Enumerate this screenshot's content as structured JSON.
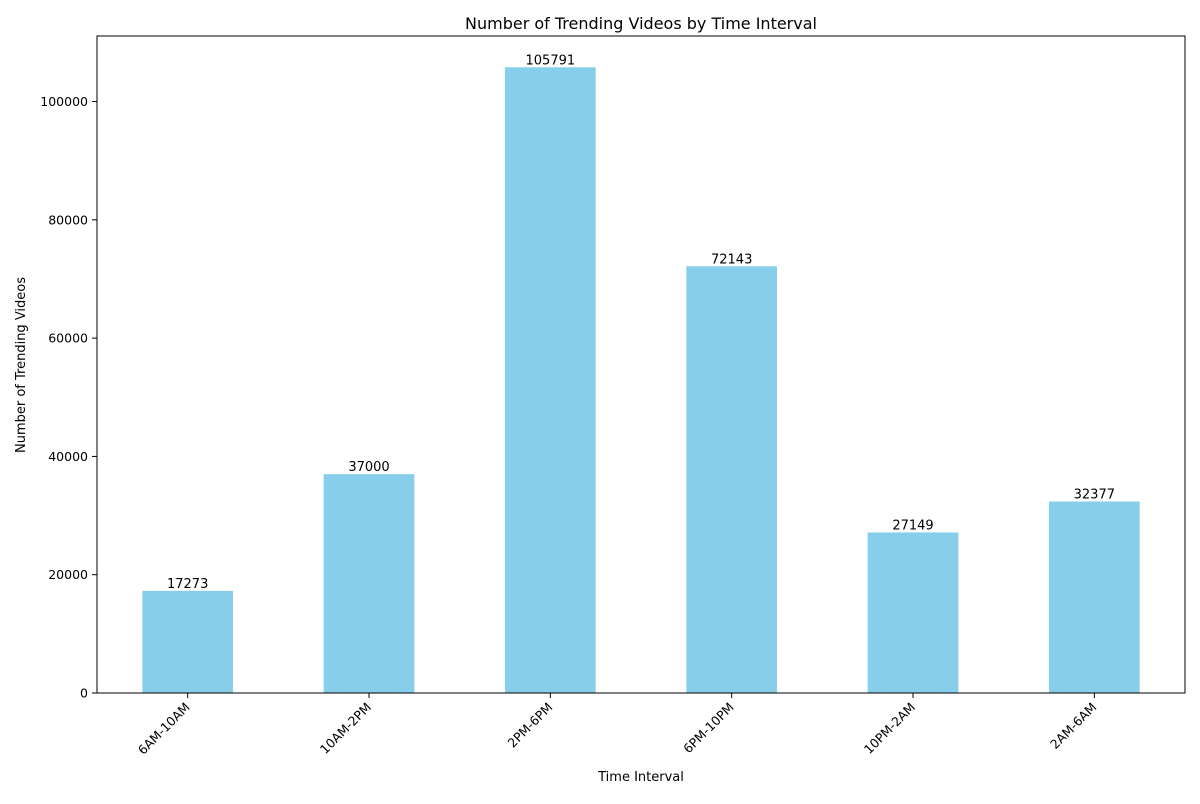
{
  "chart_data": {
    "type": "bar",
    "title": "Number of Trending Videos by Time Interval",
    "xlabel": "Time Interval",
    "ylabel": "Number of Trending Videos",
    "categories": [
      "6AM-10AM",
      "10AM-2PM",
      "2PM-6PM",
      "6PM-10PM",
      "10PM-2AM",
      "2AM-6AM"
    ],
    "values": [
      17273,
      37000,
      105791,
      72143,
      27149,
      32377
    ],
    "data_labels": [
      "17273",
      "37000",
      "105791",
      "72143",
      "27149",
      "32377"
    ],
    "ylim": [
      0,
      111081
    ],
    "yticks": [
      0,
      20000,
      40000,
      60000,
      80000,
      100000
    ],
    "ytick_labels": [
      "0",
      "20000",
      "40000",
      "60000",
      "80000",
      "100000"
    ],
    "bar_color": "#87CEEB",
    "grid": false,
    "legend": "none"
  }
}
